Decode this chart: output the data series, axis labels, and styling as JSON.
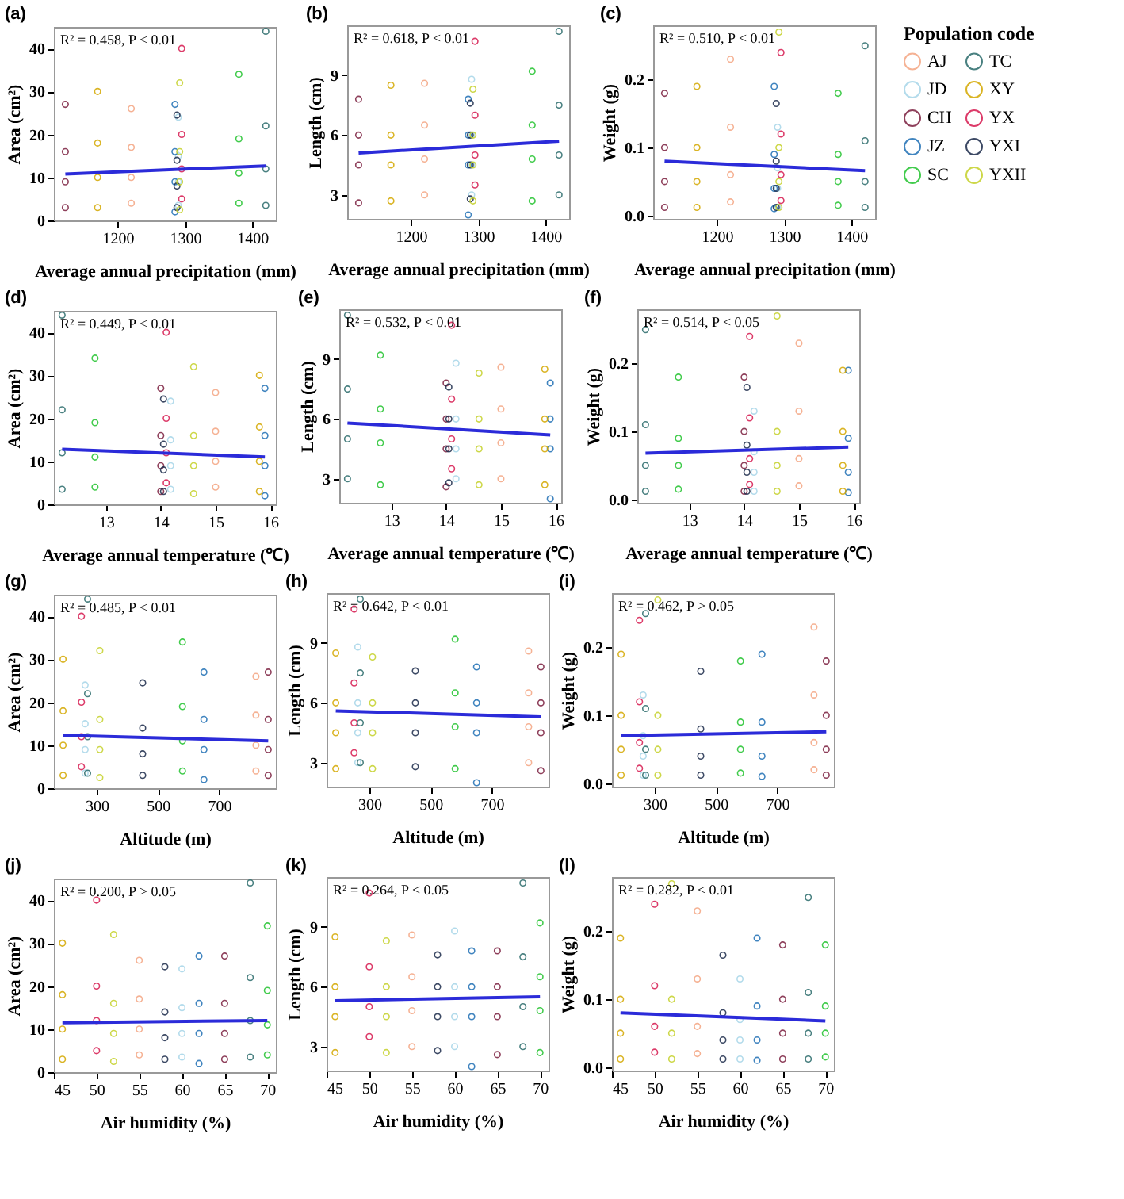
{
  "chart_data": [
    {
      "type": "scatter",
      "title": "(a)",
      "xlabel": "Average annual precipitation (mm)",
      "ylabel": "Area (cm²)",
      "annotations": [
        "R² = 0.458, P < 0.01"
      ],
      "marker": "circle",
      "xlim": [
        1105,
        1435
      ],
      "xticks": [
        1200,
        1300,
        1400
      ],
      "ylim": [
        0,
        45
      ],
      "yticks": [
        0,
        10,
        20,
        30,
        40
      ],
      "series": [
        {
          "color": "#f4a582",
          "x": [
            1220,
            1220,
            1220,
            1220
          ],
          "values": [
            4,
            10,
            17,
            26
          ]
        },
        {
          "color": "#a6d5e8",
          "x": [
            1290,
            1290,
            1290,
            1290
          ],
          "values": [
            3.5,
            9,
            15,
            24
          ]
        },
        {
          "color": "#7b1f3f",
          "x": [
            1122,
            1122,
            1122,
            1122
          ],
          "values": [
            3,
            9,
            16,
            27
          ]
        },
        {
          "color": "#1f6fb4",
          "x": [
            1285,
            1285,
            1285,
            1285
          ],
          "values": [
            2,
            9,
            16,
            27
          ]
        },
        {
          "color": "#22c32e",
          "x": [
            1380,
            1380,
            1380,
            1380
          ],
          "values": [
            4,
            11,
            19,
            34
          ]
        },
        {
          "color": "#2a6b6b",
          "x": [
            1420,
            1420,
            1420,
            1420
          ],
          "values": [
            3.5,
            12,
            22,
            44
          ]
        },
        {
          "color": "#d4a800",
          "x": [
            1170,
            1170,
            1170,
            1170
          ],
          "values": [
            3,
            10,
            18,
            30
          ]
        },
        {
          "color": "#d6194f",
          "x": [
            1295,
            1295,
            1295,
            1295
          ],
          "values": [
            5,
            12,
            20,
            40
          ]
        },
        {
          "color": "#1b2a4a",
          "x": [
            1288,
            1288,
            1288,
            1288
          ],
          "values": [
            3,
            8,
            14,
            24.5
          ]
        },
        {
          "color": "#c5d12a",
          "x": [
            1292,
            1292,
            1292,
            1292
          ],
          "values": [
            2.5,
            9,
            16,
            32
          ]
        },
        {
          "type": "line",
          "marker": "none",
          "color": "#2b2bd9",
          "x": [
            1122,
            1420
          ],
          "values": [
            10.8,
            12.7
          ]
        }
      ]
    },
    {
      "type": "scatter",
      "title": "(b)",
      "xlabel": "Average annual precipitation (mm)",
      "ylabel": "Length (cm)",
      "annotations": [
        "R² = 0.618, P < 0.01"
      ],
      "marker": "circle",
      "xlim": [
        1105,
        1435
      ],
      "xticks": [
        1200,
        1300,
        1400
      ],
      "ylim": [
        1.8,
        11.5
      ],
      "yticks": [
        3,
        6,
        9
      ],
      "series": [
        {
          "color": "#f4a582",
          "x": [
            1220,
            1220,
            1220,
            1220
          ],
          "values": [
            3,
            4.8,
            6.5,
            8.6
          ]
        },
        {
          "color": "#a6d5e8",
          "x": [
            1290,
            1290,
            1290,
            1290
          ],
          "values": [
            3,
            4.5,
            6,
            8.8
          ]
        },
        {
          "color": "#7b1f3f",
          "x": [
            1122,
            1122,
            1122,
            1122
          ],
          "values": [
            2.6,
            4.5,
            6,
            7.8
          ]
        },
        {
          "color": "#1f6fb4",
          "x": [
            1285,
            1285,
            1285,
            1285
          ],
          "values": [
            2,
            4.5,
            6,
            7.8
          ]
        },
        {
          "color": "#22c32e",
          "x": [
            1380,
            1380,
            1380,
            1380
          ],
          "values": [
            2.7,
            4.8,
            6.5,
            9.2
          ]
        },
        {
          "color": "#2a6b6b",
          "x": [
            1420,
            1420,
            1420,
            1420
          ],
          "values": [
            3,
            5,
            7.5,
            11.2
          ]
        },
        {
          "color": "#d4a800",
          "x": [
            1170,
            1170,
            1170,
            1170
          ],
          "values": [
            2.7,
            4.5,
            6,
            8.5
          ]
        },
        {
          "color": "#d6194f",
          "x": [
            1295,
            1295,
            1295,
            1295
          ],
          "values": [
            3.5,
            5,
            7,
            10.7
          ]
        },
        {
          "color": "#1b2a4a",
          "x": [
            1288,
            1288,
            1288,
            1288
          ],
          "values": [
            2.8,
            4.5,
            6,
            7.6
          ]
        },
        {
          "color": "#c5d12a",
          "x": [
            1292,
            1292,
            1292,
            1292
          ],
          "values": [
            2.7,
            4.5,
            6,
            8.3
          ]
        },
        {
          "type": "line",
          "marker": "none",
          "color": "#2b2bd9",
          "x": [
            1122,
            1420
          ],
          "values": [
            5.1,
            5.7
          ]
        }
      ]
    },
    {
      "type": "scatter",
      "title": "(c)",
      "xlabel": "Average annual precipitation (mm)",
      "ylabel": "Weight (g)",
      "annotations": [
        "R² = 0.510, P < 0.01"
      ],
      "marker": "circle",
      "legend": "right",
      "legend_title": "Population code",
      "xlim": [
        1105,
        1435
      ],
      "xticks": [
        1200,
        1300,
        1400
      ],
      "ylim": [
        -0.005,
        0.28
      ],
      "yticks": [
        {
          "value": 0,
          "label": "0.0"
        },
        {
          "value": 0.1,
          "label": "0.1"
        },
        {
          "value": 0.2,
          "label": "0.2"
        }
      ],
      "series": [
        {
          "name": "AJ",
          "color": "#f4a582",
          "x": [
            1220,
            1220,
            1220,
            1220
          ],
          "values": [
            0.02,
            0.06,
            0.13,
            0.23
          ]
        },
        {
          "name": "JD",
          "color": "#a6d5e8",
          "x": [
            1290,
            1290,
            1290,
            1290
          ],
          "values": [
            0.012,
            0.04,
            0.07,
            0.13
          ]
        },
        {
          "name": "CH",
          "color": "#7b1f3f",
          "x": [
            1122,
            1122,
            1122,
            1122
          ],
          "values": [
            0.012,
            0.05,
            0.1,
            0.18
          ]
        },
        {
          "name": "JZ",
          "color": "#1f6fb4",
          "x": [
            1285,
            1285,
            1285,
            1285
          ],
          "values": [
            0.01,
            0.04,
            0.09,
            0.19
          ]
        },
        {
          "name": "SC",
          "color": "#22c32e",
          "x": [
            1380,
            1380,
            1380,
            1380
          ],
          "values": [
            0.015,
            0.05,
            0.09,
            0.18
          ]
        },
        {
          "name": "TC",
          "color": "#2a6b6b",
          "x": [
            1420,
            1420,
            1420,
            1420
          ],
          "values": [
            0.012,
            0.05,
            0.11,
            0.25
          ]
        },
        {
          "name": "XY",
          "color": "#d4a800",
          "x": [
            1170,
            1170,
            1170,
            1170
          ],
          "values": [
            0.012,
            0.05,
            0.1,
            0.19
          ]
        },
        {
          "name": "YX",
          "color": "#d6194f",
          "x": [
            1295,
            1295,
            1295,
            1295
          ],
          "values": [
            0.022,
            0.06,
            0.12,
            0.24
          ]
        },
        {
          "name": "YXI",
          "color": "#1b2a4a",
          "x": [
            1288,
            1288,
            1288,
            1288
          ],
          "values": [
            0.012,
            0.04,
            0.08,
            0.165
          ]
        },
        {
          "name": "YXII",
          "color": "#c5d12a",
          "x": [
            1292,
            1292,
            1292,
            1292
          ],
          "values": [
            0.012,
            0.05,
            0.1,
            0.27
          ]
        },
        {
          "type": "line",
          "marker": "none",
          "color": "#2b2bd9",
          "x": [
            1122,
            1420
          ],
          "values": [
            0.08,
            0.066
          ]
        }
      ]
    },
    {
      "type": "scatter",
      "title": "(d)",
      "xlabel": "Average annual temperature (℃)",
      "ylabel": "Area (cm²)",
      "annotations": [
        "R² = 0.449, P < 0.01"
      ],
      "marker": "circle",
      "xlim": [
        12.05,
        16.1
      ],
      "xticks": [
        13,
        14,
        15,
        16
      ],
      "ylim": [
        0,
        45
      ],
      "yticks": [
        0,
        10,
        20,
        30,
        40
      ],
      "series": [
        {
          "color": "#f4a582",
          "x": [
            15,
            15,
            15,
            15
          ],
          "values": [
            4,
            10,
            17,
            26
          ]
        },
        {
          "color": "#a6d5e8",
          "x": [
            14.18,
            14.18,
            14.18,
            14.18
          ],
          "values": [
            3.5,
            9,
            15,
            24
          ]
        },
        {
          "color": "#7b1f3f",
          "x": [
            14,
            14,
            14,
            14
          ],
          "values": [
            3,
            9,
            16,
            27
          ]
        },
        {
          "color": "#1f6fb4",
          "x": [
            15.9,
            15.9,
            15.9,
            15.9
          ],
          "values": [
            2,
            9,
            16,
            27
          ]
        },
        {
          "color": "#22c32e",
          "x": [
            12.8,
            12.8,
            12.8,
            12.8
          ],
          "values": [
            4,
            11,
            19,
            34
          ]
        },
        {
          "color": "#2a6b6b",
          "x": [
            12.2,
            12.2,
            12.2,
            12.2
          ],
          "values": [
            3.5,
            12,
            22,
            44
          ]
        },
        {
          "color": "#d4a800",
          "x": [
            15.8,
            15.8,
            15.8,
            15.8
          ],
          "values": [
            3,
            10,
            18,
            30
          ]
        },
        {
          "color": "#d6194f",
          "x": [
            14.1,
            14.1,
            14.1,
            14.1
          ],
          "values": [
            5,
            12,
            20,
            40
          ]
        },
        {
          "color": "#1b2a4a",
          "x": [
            14.05,
            14.05,
            14.05,
            14.05
          ],
          "values": [
            3,
            8,
            14,
            24.5
          ]
        },
        {
          "color": "#c5d12a",
          "x": [
            14.6,
            14.6,
            14.6,
            14.6
          ],
          "values": [
            2.5,
            9,
            16,
            32
          ]
        },
        {
          "type": "line",
          "marker": "none",
          "color": "#2b2bd9",
          "x": [
            12.2,
            15.9
          ],
          "values": [
            12.8,
            11
          ]
        }
      ]
    },
    {
      "type": "scatter",
      "title": "(e)",
      "xlabel": "Average annual temperature (℃)",
      "ylabel": "Length (cm)",
      "annotations": [
        "R² = 0.532, P < 0.01"
      ],
      "marker": "circle",
      "xlim": [
        12.05,
        16.1
      ],
      "xticks": [
        13,
        14,
        15,
        16
      ],
      "ylim": [
        1.8,
        11.5
      ],
      "yticks": [
        3,
        6,
        9
      ],
      "series": [
        {
          "color": "#f4a582",
          "x": [
            15,
            15,
            15,
            15
          ],
          "values": [
            3,
            4.8,
            6.5,
            8.6
          ]
        },
        {
          "color": "#a6d5e8",
          "x": [
            14.18,
            14.18,
            14.18,
            14.18
          ],
          "values": [
            3,
            4.5,
            6,
            8.8
          ]
        },
        {
          "color": "#7b1f3f",
          "x": [
            14,
            14,
            14,
            14
          ],
          "values": [
            2.6,
            4.5,
            6,
            7.8
          ]
        },
        {
          "color": "#1f6fb4",
          "x": [
            15.9,
            15.9,
            15.9,
            15.9
          ],
          "values": [
            2,
            4.5,
            6,
            7.8
          ]
        },
        {
          "color": "#22c32e",
          "x": [
            12.8,
            12.8,
            12.8,
            12.8
          ],
          "values": [
            2.7,
            4.8,
            6.5,
            9.2
          ]
        },
        {
          "color": "#2a6b6b",
          "x": [
            12.2,
            12.2,
            12.2,
            12.2
          ],
          "values": [
            3,
            5,
            7.5,
            11.2
          ]
        },
        {
          "color": "#d4a800",
          "x": [
            15.8,
            15.8,
            15.8,
            15.8
          ],
          "values": [
            2.7,
            4.5,
            6,
            8.5
          ]
        },
        {
          "color": "#d6194f",
          "x": [
            14.1,
            14.1,
            14.1,
            14.1
          ],
          "values": [
            3.5,
            5,
            7,
            10.7
          ]
        },
        {
          "color": "#1b2a4a",
          "x": [
            14.05,
            14.05,
            14.05,
            14.05
          ],
          "values": [
            2.8,
            4.5,
            6,
            7.6
          ]
        },
        {
          "color": "#c5d12a",
          "x": [
            14.6,
            14.6,
            14.6,
            14.6
          ],
          "values": [
            2.7,
            4.5,
            6,
            8.3
          ]
        },
        {
          "type": "line",
          "marker": "none",
          "color": "#2b2bd9",
          "x": [
            12.2,
            15.9
          ],
          "values": [
            5.8,
            5.2
          ]
        }
      ]
    },
    {
      "type": "scatter",
      "title": "(f)",
      "xlabel": "Average annual temperature (℃)",
      "ylabel": "Weight (g)",
      "annotations": [
        "R² = 0.514, P < 0.05"
      ],
      "marker": "circle",
      "xlim": [
        12.05,
        16.1
      ],
      "xticks": [
        13,
        14,
        15,
        16
      ],
      "ylim": [
        -0.005,
        0.28
      ],
      "yticks": [
        {
          "value": 0,
          "label": "0.0"
        },
        {
          "value": 0.1,
          "label": "0.1"
        },
        {
          "value": 0.2,
          "label": "0.2"
        }
      ],
      "series": [
        {
          "color": "#f4a582",
          "x": [
            15,
            15,
            15,
            15
          ],
          "values": [
            0.02,
            0.06,
            0.13,
            0.23
          ]
        },
        {
          "color": "#a6d5e8",
          "x": [
            14.18,
            14.18,
            14.18,
            14.18
          ],
          "values": [
            0.012,
            0.04,
            0.07,
            0.13
          ]
        },
        {
          "color": "#7b1f3f",
          "x": [
            14,
            14,
            14,
            14
          ],
          "values": [
            0.012,
            0.05,
            0.1,
            0.18
          ]
        },
        {
          "color": "#1f6fb4",
          "x": [
            15.9,
            15.9,
            15.9,
            15.9
          ],
          "values": [
            0.01,
            0.04,
            0.09,
            0.19
          ]
        },
        {
          "color": "#22c32e",
          "x": [
            12.8,
            12.8,
            12.8,
            12.8
          ],
          "values": [
            0.015,
            0.05,
            0.09,
            0.18
          ]
        },
        {
          "color": "#2a6b6b",
          "x": [
            12.2,
            12.2,
            12.2,
            12.2
          ],
          "values": [
            0.012,
            0.05,
            0.11,
            0.25
          ]
        },
        {
          "color": "#d4a800",
          "x": [
            15.8,
            15.8,
            15.8,
            15.8
          ],
          "values": [
            0.012,
            0.05,
            0.1,
            0.19
          ]
        },
        {
          "color": "#d6194f",
          "x": [
            14.1,
            14.1,
            14.1,
            14.1
          ],
          "values": [
            0.022,
            0.06,
            0.12,
            0.24
          ]
        },
        {
          "color": "#1b2a4a",
          "x": [
            14.05,
            14.05,
            14.05,
            14.05
          ],
          "values": [
            0.012,
            0.04,
            0.08,
            0.165
          ]
        },
        {
          "color": "#c5d12a",
          "x": [
            14.6,
            14.6,
            14.6,
            14.6
          ],
          "values": [
            0.012,
            0.05,
            0.1,
            0.27
          ]
        },
        {
          "type": "line",
          "marker": "none",
          "color": "#2b2bd9",
          "x": [
            12.2,
            15.9
          ],
          "values": [
            0.068,
            0.077
          ]
        }
      ]
    },
    {
      "type": "scatter",
      "title": "(g)",
      "xlabel": "Altitude (m)",
      "ylabel": "Area (cm²)",
      "annotations": [
        "R² = 0.485, P < 0.01"
      ],
      "marker": "circle",
      "xlim": [
        160,
        885
      ],
      "xticks": [
        300,
        500,
        700
      ],
      "ylim": [
        0,
        45
      ],
      "yticks": [
        0,
        10,
        20,
        30,
        40
      ],
      "series": [
        {
          "color": "#f4a582",
          "x": [
            820,
            820,
            820,
            820
          ],
          "values": [
            4,
            10,
            17,
            26
          ]
        },
        {
          "color": "#a6d5e8",
          "x": [
            262,
            262,
            262,
            262
          ],
          "values": [
            3.5,
            9,
            15,
            24
          ]
        },
        {
          "color": "#7b1f3f",
          "x": [
            860,
            860,
            860,
            860
          ],
          "values": [
            3,
            9,
            16,
            27
          ]
        },
        {
          "color": "#1f6fb4",
          "x": [
            650,
            650,
            650,
            650
          ],
          "values": [
            2,
            9,
            16,
            27
          ]
        },
        {
          "color": "#22c32e",
          "x": [
            580,
            580,
            580,
            580
          ],
          "values": [
            4,
            11,
            19,
            34
          ]
        },
        {
          "color": "#2a6b6b",
          "x": [
            270,
            270,
            270,
            270
          ],
          "values": [
            3.5,
            12,
            22,
            44
          ]
        },
        {
          "color": "#d4a800",
          "x": [
            190,
            190,
            190,
            190
          ],
          "values": [
            3,
            10,
            18,
            30
          ]
        },
        {
          "color": "#d6194f",
          "x": [
            250,
            250,
            250,
            250
          ],
          "values": [
            5,
            12,
            20,
            40
          ]
        },
        {
          "color": "#1b2a4a",
          "x": [
            450,
            450,
            450,
            450
          ],
          "values": [
            3,
            8,
            14,
            24.5
          ]
        },
        {
          "color": "#c5d12a",
          "x": [
            310,
            310,
            310,
            310
          ],
          "values": [
            2.5,
            9,
            16,
            32
          ]
        },
        {
          "type": "line",
          "marker": "none",
          "color": "#2b2bd9",
          "x": [
            190,
            860
          ],
          "values": [
            12.3,
            11
          ]
        }
      ]
    },
    {
      "type": "scatter",
      "title": "(h)",
      "xlabel": "Altitude (m)",
      "ylabel": "Length (cm)",
      "annotations": [
        "R² = 0.642, P < 0.01"
      ],
      "marker": "circle",
      "xlim": [
        160,
        885
      ],
      "xticks": [
        300,
        500,
        700
      ],
      "ylim": [
        1.8,
        11.5
      ],
      "yticks": [
        3,
        6,
        9
      ],
      "series": [
        {
          "color": "#f4a582",
          "x": [
            820,
            820,
            820,
            820
          ],
          "values": [
            3,
            4.8,
            6.5,
            8.6
          ]
        },
        {
          "color": "#a6d5e8",
          "x": [
            262,
            262,
            262,
            262
          ],
          "values": [
            3,
            4.5,
            6,
            8.8
          ]
        },
        {
          "color": "#7b1f3f",
          "x": [
            860,
            860,
            860,
            860
          ],
          "values": [
            2.6,
            4.5,
            6,
            7.8
          ]
        },
        {
          "color": "#1f6fb4",
          "x": [
            650,
            650,
            650,
            650
          ],
          "values": [
            2,
            4.5,
            6,
            7.8
          ]
        },
        {
          "color": "#22c32e",
          "x": [
            580,
            580,
            580,
            580
          ],
          "values": [
            2.7,
            4.8,
            6.5,
            9.2
          ]
        },
        {
          "color": "#2a6b6b",
          "x": [
            270,
            270,
            270,
            270
          ],
          "values": [
            3,
            5,
            7.5,
            11.2
          ]
        },
        {
          "color": "#d4a800",
          "x": [
            190,
            190,
            190,
            190
          ],
          "values": [
            2.7,
            4.5,
            6,
            8.5
          ]
        },
        {
          "color": "#d6194f",
          "x": [
            250,
            250,
            250,
            250
          ],
          "values": [
            3.5,
            5,
            7,
            10.7
          ]
        },
        {
          "color": "#1b2a4a",
          "x": [
            450,
            450,
            450,
            450
          ],
          "values": [
            2.8,
            4.5,
            6,
            7.6
          ]
        },
        {
          "color": "#c5d12a",
          "x": [
            310,
            310,
            310,
            310
          ],
          "values": [
            2.7,
            4.5,
            6,
            8.3
          ]
        },
        {
          "type": "line",
          "marker": "none",
          "color": "#2b2bd9",
          "x": [
            190,
            860
          ],
          "values": [
            5.6,
            5.3
          ]
        }
      ]
    },
    {
      "type": "scatter",
      "title": "(i)",
      "xlabel": "Altitude (m)",
      "ylabel": "Weight (g)",
      "annotations": [
        "R² = 0.462, P > 0.05"
      ],
      "marker": "circle",
      "xlim": [
        160,
        885
      ],
      "xticks": [
        300,
        500,
        700
      ],
      "ylim": [
        -0.005,
        0.28
      ],
      "yticks": [
        {
          "value": 0,
          "label": "0.0"
        },
        {
          "value": 0.1,
          "label": "0.1"
        },
        {
          "value": 0.2,
          "label": "0.2"
        }
      ],
      "series": [
        {
          "color": "#f4a582",
          "x": [
            820,
            820,
            820,
            820
          ],
          "values": [
            0.02,
            0.06,
            0.13,
            0.23
          ]
        },
        {
          "color": "#a6d5e8",
          "x": [
            262,
            262,
            262,
            262
          ],
          "values": [
            0.012,
            0.04,
            0.07,
            0.13
          ]
        },
        {
          "color": "#7b1f3f",
          "x": [
            860,
            860,
            860,
            860
          ],
          "values": [
            0.012,
            0.05,
            0.1,
            0.18
          ]
        },
        {
          "color": "#1f6fb4",
          "x": [
            650,
            650,
            650,
            650
          ],
          "values": [
            0.01,
            0.04,
            0.09,
            0.19
          ]
        },
        {
          "color": "#22c32e",
          "x": [
            580,
            580,
            580,
            580
          ],
          "values": [
            0.015,
            0.05,
            0.09,
            0.18
          ]
        },
        {
          "color": "#2a6b6b",
          "x": [
            270,
            270,
            270,
            270
          ],
          "values": [
            0.012,
            0.05,
            0.11,
            0.25
          ]
        },
        {
          "color": "#d4a800",
          "x": [
            190,
            190,
            190,
            190
          ],
          "values": [
            0.012,
            0.05,
            0.1,
            0.19
          ]
        },
        {
          "color": "#d6194f",
          "x": [
            250,
            250,
            250,
            250
          ],
          "values": [
            0.022,
            0.06,
            0.12,
            0.24
          ]
        },
        {
          "color": "#1b2a4a",
          "x": [
            450,
            450,
            450,
            450
          ],
          "values": [
            0.012,
            0.04,
            0.08,
            0.165
          ]
        },
        {
          "color": "#c5d12a",
          "x": [
            310,
            310,
            310,
            310
          ],
          "values": [
            0.012,
            0.05,
            0.1,
            0.27
          ]
        },
        {
          "type": "line",
          "marker": "none",
          "color": "#2b2bd9",
          "x": [
            190,
            860
          ],
          "values": [
            0.07,
            0.076
          ]
        }
      ]
    },
    {
      "type": "scatter",
      "title": "(j)",
      "xlabel": "Air humidity (%)",
      "ylabel": "Area (cm²)",
      "annotations": [
        "R² = 0.200, P > 0.05"
      ],
      "marker": "circle",
      "xlim": [
        45,
        71
      ],
      "xticks": [
        45,
        50,
        55,
        60,
        65,
        70
      ],
      "ylim": [
        0,
        45
      ],
      "yticks": [
        0,
        10,
        20,
        30,
        40
      ],
      "series": [
        {
          "color": "#f4a582",
          "x": [
            55,
            55,
            55,
            55
          ],
          "values": [
            4,
            10,
            17,
            26
          ]
        },
        {
          "color": "#a6d5e8",
          "x": [
            60,
            60,
            60,
            60
          ],
          "values": [
            3.5,
            9,
            15,
            24
          ]
        },
        {
          "color": "#7b1f3f",
          "x": [
            65,
            65,
            65,
            65
          ],
          "values": [
            3,
            9,
            16,
            27
          ]
        },
        {
          "color": "#1f6fb4",
          "x": [
            62,
            62,
            62,
            62
          ],
          "values": [
            2,
            9,
            16,
            27
          ]
        },
        {
          "color": "#22c32e",
          "x": [
            70,
            70,
            70,
            70
          ],
          "values": [
            4,
            11,
            19,
            34
          ]
        },
        {
          "color": "#2a6b6b",
          "x": [
            68,
            68,
            68,
            68
          ],
          "values": [
            3.5,
            12,
            22,
            44
          ]
        },
        {
          "color": "#d4a800",
          "x": [
            46,
            46,
            46,
            46
          ],
          "values": [
            3,
            10,
            18,
            30
          ]
        },
        {
          "color": "#d6194f",
          "x": [
            50,
            50,
            50,
            50
          ],
          "values": [
            5,
            12,
            20,
            40
          ]
        },
        {
          "color": "#1b2a4a",
          "x": [
            58,
            58,
            58,
            58
          ],
          "values": [
            3,
            8,
            14,
            24.5
          ]
        },
        {
          "color": "#c5d12a",
          "x": [
            52,
            52,
            52,
            52
          ],
          "values": [
            2.5,
            9,
            16,
            32
          ]
        },
        {
          "type": "line",
          "marker": "none",
          "color": "#2b2bd9",
          "x": [
            46,
            70
          ],
          "values": [
            11.5,
            12
          ]
        }
      ]
    },
    {
      "type": "scatter",
      "title": "(k)",
      "xlabel": "Air humidity (%)",
      "ylabel": "Length (cm)",
      "annotations": [
        "R² = 0.264, P < 0.05"
      ],
      "marker": "circle",
      "xlim": [
        45,
        71
      ],
      "xticks": [
        45,
        50,
        55,
        60,
        65,
        70
      ],
      "ylim": [
        1.8,
        11.5
      ],
      "yticks": [
        3,
        6,
        9
      ],
      "series": [
        {
          "color": "#f4a582",
          "x": [
            55,
            55,
            55,
            55
          ],
          "values": [
            3,
            4.8,
            6.5,
            8.6
          ]
        },
        {
          "color": "#a6d5e8",
          "x": [
            60,
            60,
            60,
            60
          ],
          "values": [
            3,
            4.5,
            6,
            8.8
          ]
        },
        {
          "color": "#7b1f3f",
          "x": [
            65,
            65,
            65,
            65
          ],
          "values": [
            2.6,
            4.5,
            6,
            7.8
          ]
        },
        {
          "color": "#1f6fb4",
          "x": [
            62,
            62,
            62,
            62
          ],
          "values": [
            2,
            4.5,
            6,
            7.8
          ]
        },
        {
          "color": "#22c32e",
          "x": [
            70,
            70,
            70,
            70
          ],
          "values": [
            2.7,
            4.8,
            6.5,
            9.2
          ]
        },
        {
          "color": "#2a6b6b",
          "x": [
            68,
            68,
            68,
            68
          ],
          "values": [
            3,
            5,
            7.5,
            11.2
          ]
        },
        {
          "color": "#d4a800",
          "x": [
            46,
            46,
            46,
            46
          ],
          "values": [
            2.7,
            4.5,
            6,
            8.5
          ]
        },
        {
          "color": "#d6194f",
          "x": [
            50,
            50,
            50,
            50
          ],
          "values": [
            3.5,
            5,
            7,
            10.7
          ]
        },
        {
          "color": "#1b2a4a",
          "x": [
            58,
            58,
            58,
            58
          ],
          "values": [
            2.8,
            4.5,
            6,
            7.6
          ]
        },
        {
          "color": "#c5d12a",
          "x": [
            52,
            52,
            52,
            52
          ],
          "values": [
            2.7,
            4.5,
            6,
            8.3
          ]
        },
        {
          "type": "line",
          "marker": "none",
          "color": "#2b2bd9",
          "x": [
            46,
            70
          ],
          "values": [
            5.3,
            5.5
          ]
        }
      ]
    },
    {
      "type": "scatter",
      "title": "(l)",
      "xlabel": "Air humidity (%)",
      "ylabel": "Weight (g)",
      "annotations": [
        "R² = 0.282, P < 0.01"
      ],
      "marker": "circle",
      "xlim": [
        45,
        71
      ],
      "xticks": [
        45,
        50,
        55,
        60,
        65,
        70
      ],
      "ylim": [
        -0.005,
        0.28
      ],
      "yticks": [
        {
          "value": 0,
          "label": "0.0"
        },
        {
          "value": 0.1,
          "label": "0.1"
        },
        {
          "value": 0.2,
          "label": "0.2"
        }
      ],
      "series": [
        {
          "color": "#f4a582",
          "x": [
            55,
            55,
            55,
            55
          ],
          "values": [
            0.02,
            0.06,
            0.13,
            0.23
          ]
        },
        {
          "color": "#a6d5e8",
          "x": [
            60,
            60,
            60,
            60
          ],
          "values": [
            0.012,
            0.04,
            0.07,
            0.13
          ]
        },
        {
          "color": "#7b1f3f",
          "x": [
            65,
            65,
            65,
            65
          ],
          "values": [
            0.012,
            0.05,
            0.1,
            0.18
          ]
        },
        {
          "color": "#1f6fb4",
          "x": [
            62,
            62,
            62,
            62
          ],
          "values": [
            0.01,
            0.04,
            0.09,
            0.19
          ]
        },
        {
          "color": "#22c32e",
          "x": [
            70,
            70,
            70,
            70
          ],
          "values": [
            0.015,
            0.05,
            0.09,
            0.18
          ]
        },
        {
          "color": "#2a6b6b",
          "x": [
            68,
            68,
            68,
            68
          ],
          "values": [
            0.012,
            0.05,
            0.11,
            0.25
          ]
        },
        {
          "color": "#d4a800",
          "x": [
            46,
            46,
            46,
            46
          ],
          "values": [
            0.012,
            0.05,
            0.1,
            0.19
          ]
        },
        {
          "color": "#d6194f",
          "x": [
            50,
            50,
            50,
            50
          ],
          "values": [
            0.022,
            0.06,
            0.12,
            0.24
          ]
        },
        {
          "color": "#1b2a4a",
          "x": [
            58,
            58,
            58,
            58
          ],
          "values": [
            0.012,
            0.04,
            0.08,
            0.165
          ]
        },
        {
          "color": "#c5d12a",
          "x": [
            52,
            52,
            52,
            52
          ],
          "values": [
            0.012,
            0.05,
            0.1,
            0.27
          ]
        },
        {
          "type": "line",
          "marker": "none",
          "color": "#2b2bd9",
          "x": [
            46,
            70
          ],
          "values": [
            0.08,
            0.068
          ]
        }
      ]
    }
  ]
}
